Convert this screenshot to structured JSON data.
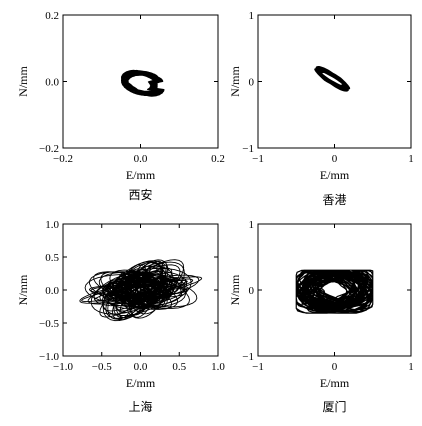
{
  "chart_data": [
    {
      "type": "scatter",
      "caption": "西安",
      "xlabel": "E/mm",
      "ylabel": "N/mm",
      "xlim": [
        -0.2,
        0.2
      ],
      "ylim": [
        -0.2,
        0.2
      ],
      "xticks": [
        -0.2,
        0.0,
        0.2
      ],
      "yticks": [
        -0.2,
        0.0,
        0.2
      ],
      "xtick_labels": [
        "−0.2",
        "0.0",
        "0.2"
      ],
      "ytick_labels": [
        "−0.2",
        "0.0",
        "0.2"
      ],
      "grid": false,
      "color": "#000000",
      "trajectory": {
        "center": [
          0.0,
          0.0
        ],
        "e_range": [
          -0.04,
          0.06
        ],
        "n_range": [
          -0.05,
          0.04
        ]
      }
    },
    {
      "type": "scatter",
      "caption": "香港",
      "xlabel": "E/mm",
      "ylabel": "N/mm",
      "xlim": [
        -1,
        1
      ],
      "ylim": [
        -1,
        1
      ],
      "xticks": [
        -1,
        0,
        1
      ],
      "yticks": [
        -1,
        0,
        1
      ],
      "xtick_labels": [
        "−1",
        "0",
        "1"
      ],
      "ytick_labels": [
        "−1",
        "0",
        "1"
      ],
      "grid": false,
      "color": "#000000",
      "trajectory": {
        "center": [
          -0.05,
          0.05
        ],
        "e_range": [
          -0.3,
          0.25
        ],
        "n_range": [
          -0.15,
          0.25
        ]
      }
    },
    {
      "type": "scatter",
      "caption": "上海",
      "xlabel": "E/mm",
      "ylabel": "N/mm",
      "xlim": [
        -1.0,
        1.0
      ],
      "ylim": [
        -1.0,
        1.0
      ],
      "xticks": [
        -1.0,
        -0.5,
        0.0,
        0.5,
        1.0
      ],
      "yticks": [
        -1.0,
        -0.5,
        0.0,
        0.5,
        1.0
      ],
      "xtick_labels": [
        "−1.0",
        "−0.5",
        "0.0",
        "0.5",
        "1.0"
      ],
      "ytick_labels": [
        "−1.0",
        "−0.5",
        "0.0",
        "0.5",
        "1.0"
      ],
      "grid": false,
      "color": "#000000",
      "trajectory": {
        "center": [
          0.0,
          0.0
        ],
        "e_range": [
          -0.8,
          0.85
        ],
        "n_range": [
          -0.6,
          0.55
        ]
      }
    },
    {
      "type": "scatter",
      "caption": "厦门",
      "xlabel": "E/mm",
      "ylabel": "N/mm",
      "xlim": [
        -1,
        1
      ],
      "ylim": [
        -1,
        1
      ],
      "xticks": [
        -1,
        0,
        1
      ],
      "yticks": [
        -1,
        0,
        1
      ],
      "xtick_labels": [
        "−1",
        "0",
        "1"
      ],
      "ytick_labels": [
        "−1",
        "0",
        "1"
      ],
      "grid": false,
      "color": "#000000",
      "trajectory": {
        "center": [
          0.0,
          0.0
        ],
        "e_range": [
          -0.5,
          0.5
        ],
        "n_range": [
          -0.35,
          0.3
        ]
      }
    }
  ]
}
